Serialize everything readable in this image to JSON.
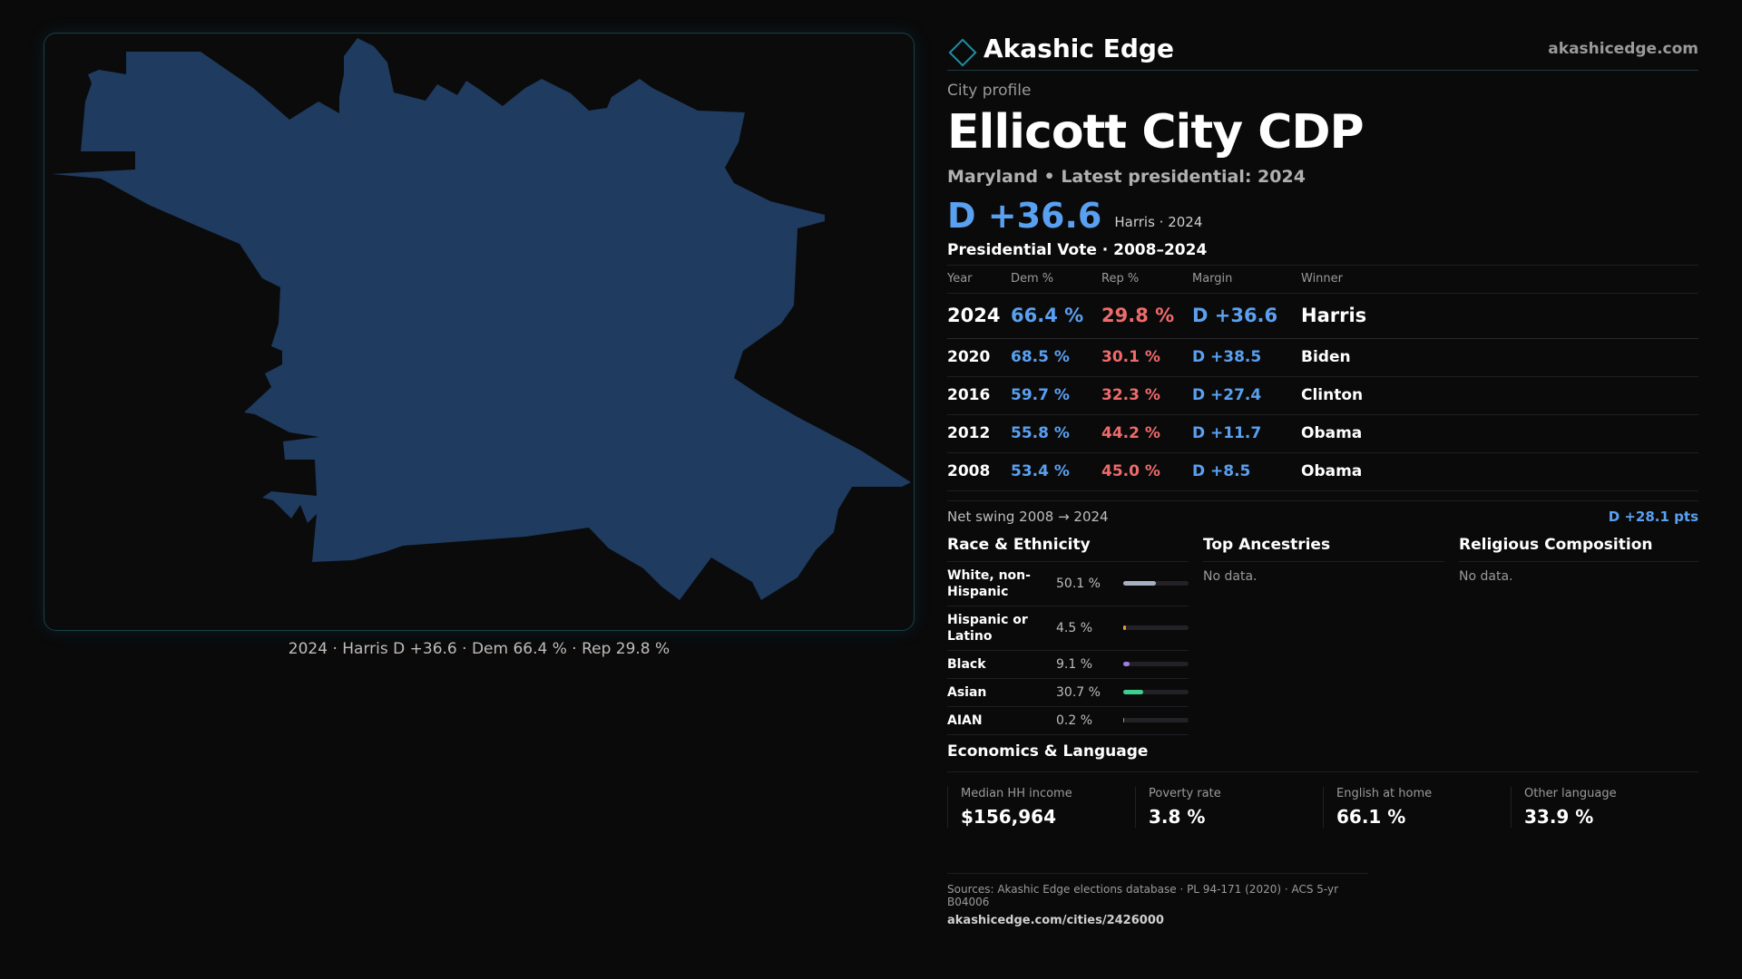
{
  "brand": {
    "name": "Akashic Edge",
    "url": "akashicedge.com",
    "logo_icon": "diamond-logo-icon"
  },
  "header": {
    "kicker": "City profile",
    "title": "Ellicott City CDP",
    "subtitle": "Maryland • Latest presidential: 2024",
    "margin": "D +36.6",
    "margin_note": "Harris · 2024"
  },
  "map": {
    "fill_color": "#1f3b5f",
    "caption": "2024 · Harris D +36.6 · Dem 66.4 % · Rep 29.8 %"
  },
  "presidential": {
    "title": "Presidential Vote · 2008–2024",
    "columns": [
      "Year",
      "Dem %",
      "Rep %",
      "Margin",
      "Winner"
    ],
    "rows": [
      {
        "year": "2024",
        "dem": "66.4 %",
        "rep": "29.8 %",
        "margin": "D +36.6",
        "winner": "Harris"
      },
      {
        "year": "2020",
        "dem": "68.5 %",
        "rep": "30.1 %",
        "margin": "D +38.5",
        "winner": "Biden"
      },
      {
        "year": "2016",
        "dem": "59.7 %",
        "rep": "32.3 %",
        "margin": "D +27.4",
        "winner": "Clinton"
      },
      {
        "year": "2012",
        "dem": "55.8 %",
        "rep": "44.2 %",
        "margin": "D +11.7",
        "winner": "Obama"
      },
      {
        "year": "2008",
        "dem": "53.4 %",
        "rep": "45.0 %",
        "margin": "D +8.5",
        "winner": "Obama"
      }
    ],
    "swing_label": "Net swing 2008 → 2024",
    "swing_value": "D +28.1 pts"
  },
  "race": {
    "title": "Race & Ethnicity",
    "rows": [
      {
        "label": "White, non-Hispanic",
        "pct": "50.1 %",
        "value": 50.1,
        "color": "#a7b0c2"
      },
      {
        "label": "Hispanic or Latino",
        "pct": "4.5 %",
        "value": 4.5,
        "color": "#e0a030"
      },
      {
        "label": "Black",
        "pct": "9.1 %",
        "value": 9.1,
        "color": "#9b7fe0"
      },
      {
        "label": "Asian",
        "pct": "30.7 %",
        "value": 30.7,
        "color": "#3ecf8e"
      },
      {
        "label": "AIAN",
        "pct": "0.2 %",
        "value": 0.2,
        "color": "#e07070"
      }
    ]
  },
  "ancestries": {
    "title": "Top Ancestries",
    "empty": "No data."
  },
  "religion": {
    "title": "Religious Composition",
    "empty": "No data."
  },
  "economics": {
    "title": "Economics & Language",
    "cells": [
      {
        "label": "Median HH income",
        "value": "$156,964"
      },
      {
        "label": "Poverty rate",
        "value": "3.8 %"
      },
      {
        "label": "English at home",
        "value": "66.1 %"
      },
      {
        "label": "Other language",
        "value": "33.9 %"
      }
    ]
  },
  "sources": {
    "text": "Sources: Akashic Edge elections database · PL 94-171 (2020) · ACS 5-yr B04006",
    "url": "akashicedge.com/cities/2426000"
  }
}
